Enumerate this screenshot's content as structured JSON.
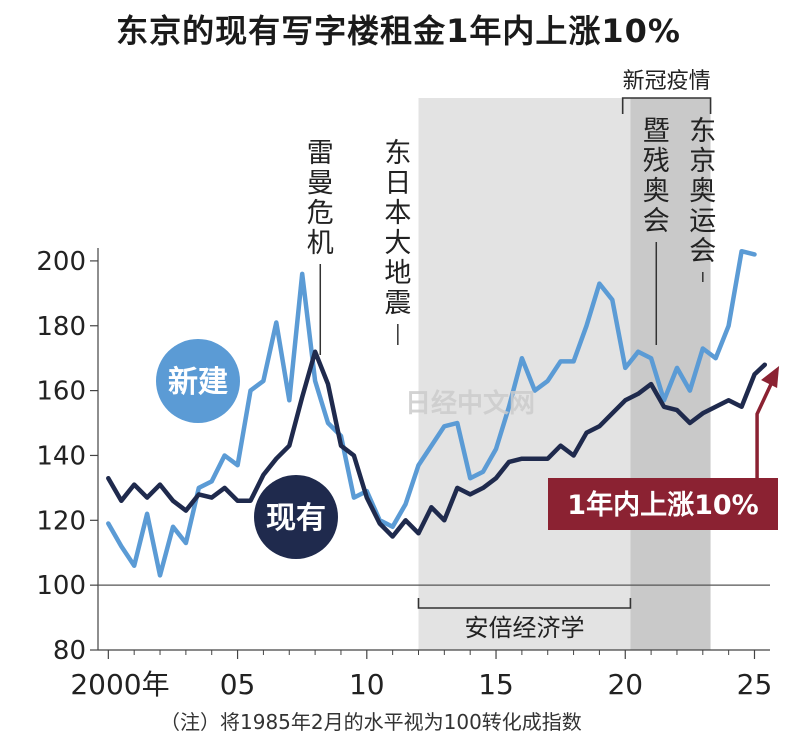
{
  "chart_data": {
    "type": "line",
    "title": "东京的现有写字楼租金1年内上涨10%",
    "footnote": "（注）将1985年2月的水平视为100转化成指数",
    "x_tick_labels": [
      "2000年",
      "05",
      "10",
      "15",
      "20",
      "25"
    ],
    "x_ticks": [
      2000,
      2005,
      2010,
      2015,
      2020,
      2025
    ],
    "xlim": [
      1999.6,
      2025.6
    ],
    "y_ticks": [
      80,
      100,
      120,
      140,
      160,
      180,
      200
    ],
    "ylim": [
      80,
      212
    ],
    "grid": false,
    "series": [
      {
        "name": "新建",
        "color": "#5b9bd5",
        "x": [
          2000,
          2000.5,
          2001,
          2001.5,
          2002,
          2002.5,
          2003,
          2003.5,
          2004,
          2004.5,
          2005,
          2005.5,
          2006,
          2006.5,
          2007,
          2007.5,
          2008,
          2008.5,
          2009,
          2009.5,
          2010,
          2010.5,
          2011,
          2011.5,
          2012,
          2012.5,
          2013,
          2013.5,
          2014,
          2014.5,
          2015,
          2015.5,
          2016,
          2016.5,
          2017,
          2017.5,
          2018,
          2018.5,
          2019,
          2019.5,
          2020,
          2020.5,
          2021,
          2021.5,
          2022,
          2022.5,
          2023,
          2023.5,
          2024,
          2024.5,
          2025
        ],
        "values": [
          119,
          112,
          106,
          122,
          103,
          118,
          113,
          130,
          132,
          140,
          137,
          160,
          163,
          181,
          157,
          196,
          163,
          150,
          146,
          127,
          129,
          120,
          118,
          125,
          137,
          143,
          149,
          150,
          133,
          135,
          142,
          155,
          170,
          160,
          163,
          169,
          169,
          180,
          193,
          188,
          167,
          172,
          170,
          157,
          167,
          160,
          173,
          170,
          180,
          203,
          202
        ]
      },
      {
        "name": "现有",
        "color": "#1f2a4d",
        "x": [
          2000,
          2000.5,
          2001,
          2001.5,
          2002,
          2002.5,
          2003,
          2003.5,
          2004,
          2004.5,
          2005,
          2005.5,
          2006,
          2006.5,
          2007,
          2007.5,
          2008,
          2008.5,
          2009,
          2009.5,
          2010,
          2010.5,
          2011,
          2011.5,
          2012,
          2012.5,
          2013,
          2013.5,
          2014,
          2014.5,
          2015,
          2015.5,
          2016,
          2016.5,
          2017,
          2017.5,
          2018,
          2018.5,
          2019,
          2019.5,
          2020,
          2020.5,
          2021,
          2021.5,
          2022,
          2022.5,
          2023,
          2023.5,
          2024,
          2024.5,
          2025,
          2025.4
        ],
        "values": [
          133,
          126,
          131,
          127,
          131,
          126,
          123,
          128,
          127,
          130,
          126,
          126,
          134,
          139,
          143,
          158,
          172,
          162,
          143,
          140,
          127,
          119,
          115,
          120,
          116,
          124,
          120,
          130,
          128,
          130,
          133,
          138,
          139,
          139,
          139,
          143,
          140,
          147,
          149,
          153,
          157,
          159,
          162,
          155,
          154,
          150,
          153,
          155,
          157,
          155,
          165,
          168
        ]
      }
    ],
    "shaded_regions": [
      {
        "label": "安倍经济学",
        "x_start": 2012,
        "x_end": 2020.2
      },
      {
        "label": "新冠疫情",
        "x_start": 2019.9,
        "x_end": 2023.3
      }
    ],
    "reference_lines": [
      {
        "y": 100
      }
    ],
    "annotations": [
      {
        "text": "雷曼危机",
        "x": 2008.2
      },
      {
        "text": "东日本大地震",
        "x": 2011.2
      },
      {
        "text": "暨残奥会",
        "x": 2021.2
      },
      {
        "text": "东京奥运会",
        "x": 2023.0
      }
    ],
    "series_labels": {
      "new": "新建",
      "existing": "现有"
    },
    "callout": "1年内上涨10%",
    "watermark": "日经中文网"
  }
}
